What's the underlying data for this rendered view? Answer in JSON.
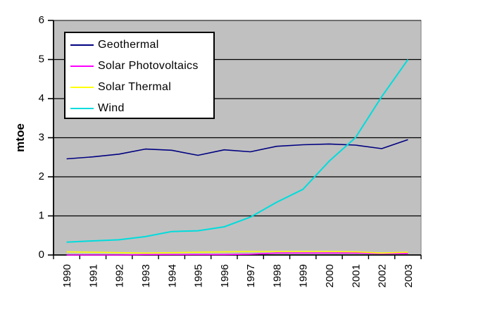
{
  "chart_data": {
    "type": "line",
    "title": "",
    "xlabel": "",
    "ylabel": "mtoe",
    "x": [
      "1990",
      "1991",
      "1992",
      "1993",
      "1994",
      "1995",
      "1996",
      "1997",
      "1998",
      "1999",
      "2000",
      "2001",
      "2002",
      "2003"
    ],
    "ylim": [
      0,
      6
    ],
    "yticks": [
      0,
      1,
      2,
      3,
      4,
      5,
      6
    ],
    "grid": "horizontal-black-on-gray",
    "plot_bg": "#C0C0C0",
    "grid_color": "#000000",
    "axis_color": "#000000",
    "plot_border_color": "#808080",
    "legend_position": "inside-top-left",
    "series": [
      {
        "name": "Geothermal",
        "color": "#000080",
        "values": [
          2.46,
          2.51,
          2.58,
          2.71,
          2.68,
          2.55,
          2.69,
          2.64,
          2.78,
          2.82,
          2.84,
          2.81,
          2.72,
          2.95
        ]
      },
      {
        "name": "Solar Photovoltaics",
        "color": "#FF00FF",
        "values": [
          0.0,
          0.0,
          0.0,
          0.01,
          0.01,
          0.01,
          0.01,
          0.02,
          0.05,
          0.05,
          0.05,
          0.05,
          0.04,
          0.04
        ]
      },
      {
        "name": "Solar Thermal",
        "color": "#FFFF00",
        "values": [
          0.08,
          0.07,
          0.06,
          0.05,
          0.06,
          0.07,
          0.08,
          0.09,
          0.09,
          0.09,
          0.09,
          0.08,
          0.05,
          0.07
        ]
      },
      {
        "name": "Wind",
        "color": "#00DCDC",
        "values": [
          0.33,
          0.36,
          0.39,
          0.47,
          0.6,
          0.62,
          0.72,
          0.97,
          1.35,
          1.68,
          2.4,
          3.0,
          4.05,
          5.0
        ]
      }
    ]
  }
}
